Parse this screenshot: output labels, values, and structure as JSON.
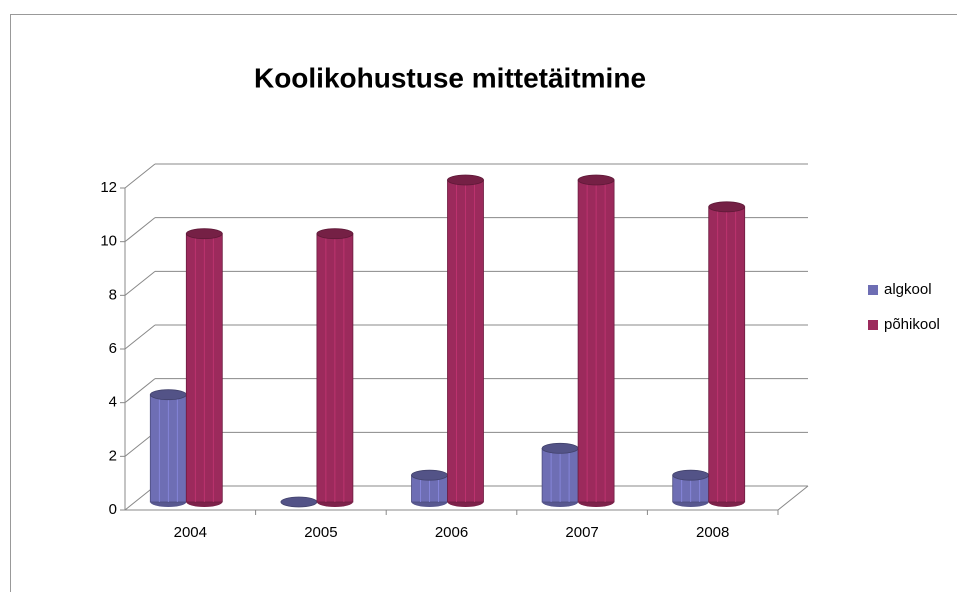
{
  "chart_data": {
    "type": "bar3d",
    "title": "Koolikohustuse mittetäitmine",
    "categories": [
      "2004",
      "2005",
      "2006",
      "2007",
      "2008"
    ],
    "series": [
      {
        "name": "algkool",
        "color": "#6e6eb4",
        "values": [
          4,
          0,
          1,
          2,
          1
        ]
      },
      {
        "name": "põhikool",
        "color": "#9c2a5c",
        "values": [
          10,
          10,
          12,
          12,
          11
        ]
      }
    ],
    "ylim": [
      0,
      12
    ],
    "yticks": [
      0,
      2,
      4,
      6,
      8,
      10,
      12
    ],
    "grid": true,
    "legend": "right"
  }
}
